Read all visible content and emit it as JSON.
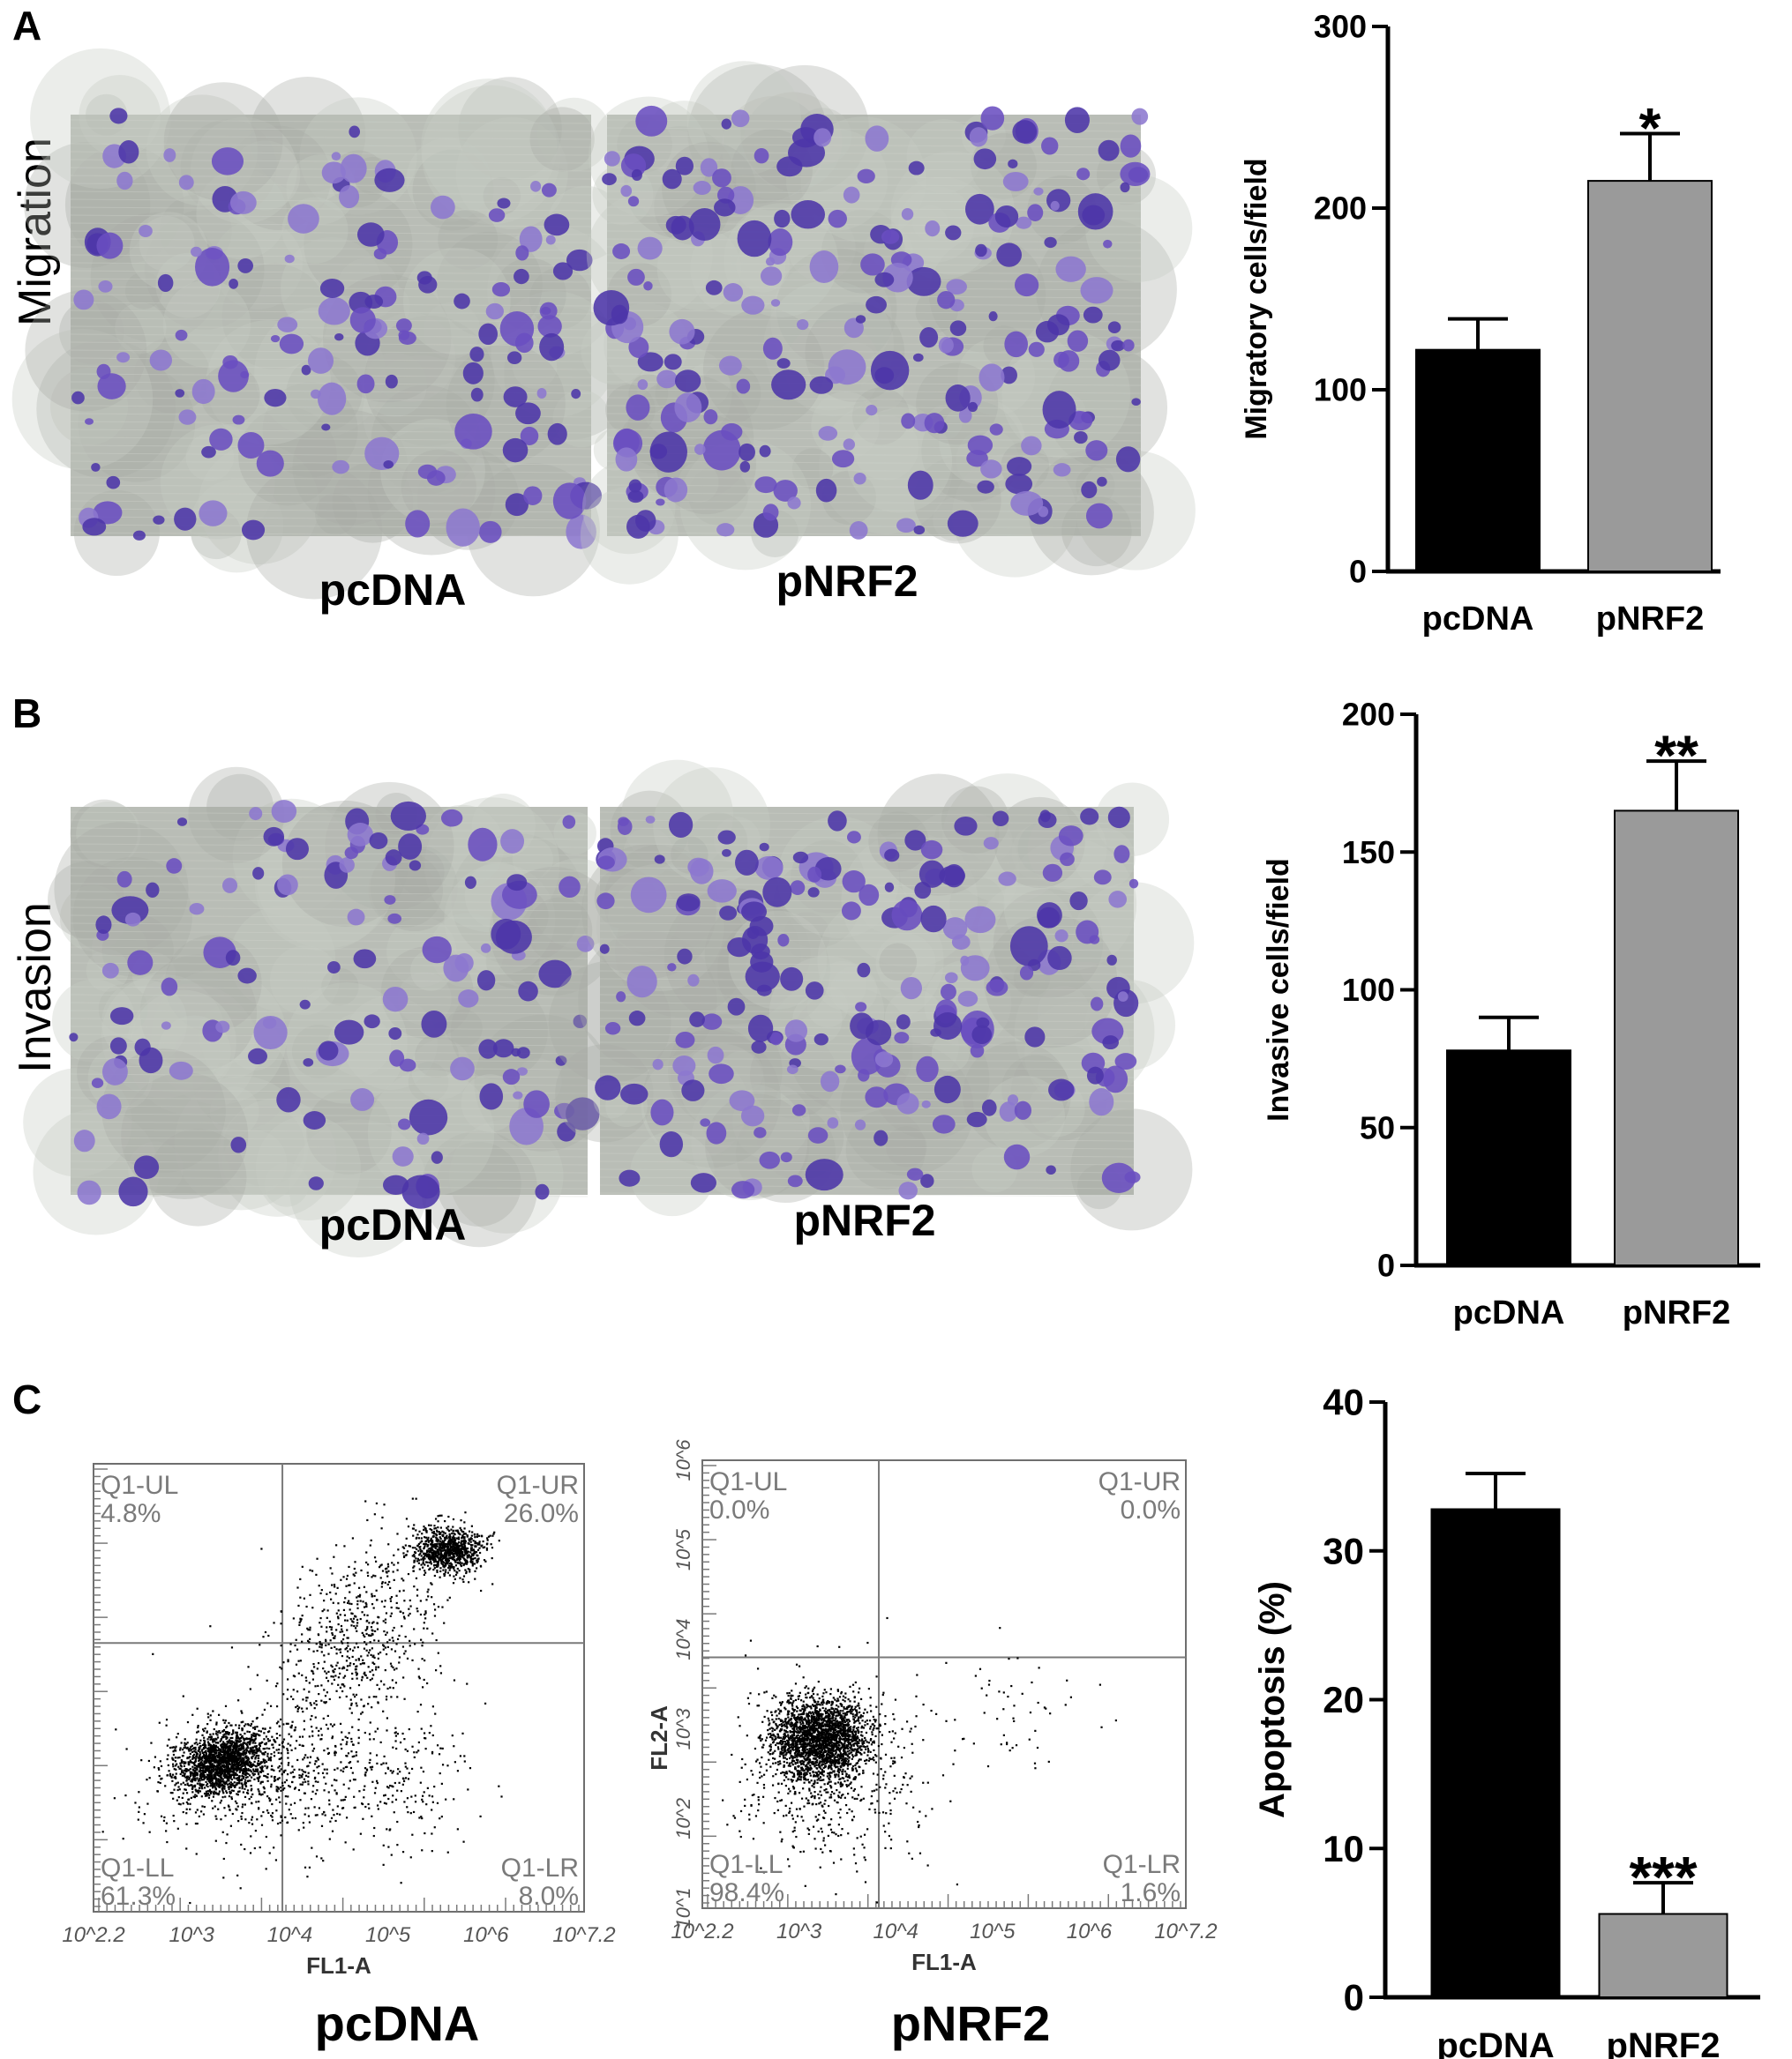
{
  "figure": {
    "panels": [
      {
        "letter": "A",
        "row_label": "Migration",
        "images": [
          {
            "caption": "pcDNA",
            "density": 1.0
          },
          {
            "caption": "pNRF2",
            "density": 1.6
          }
        ]
      },
      {
        "letter": "B",
        "row_label": "Invasion",
        "images": [
          {
            "caption": "pcDNA",
            "density": 0.9
          },
          {
            "caption": "pNRF2",
            "density": 1.5
          }
        ]
      },
      {
        "letter": "C",
        "flow_plots": [
          {
            "caption": "pcDNA",
            "xlabel": "FL1-A",
            "ylabel": "",
            "quadrants": {
              "ul_name": "Q1-UL",
              "ul_value": "4.8%",
              "ur_name": "Q1-UR",
              "ur_value": "26.0%",
              "ll_name": "Q1-LL",
              "ll_value": "61.3%",
              "lr_name": "Q1-LR",
              "lr_value": "8.0%"
            },
            "x_ticks": [
              "10^2.2",
              "10^3",
              "10^4",
              "10^5",
              "10^6",
              "10^7.2"
            ]
          },
          {
            "caption": "pNRF2",
            "xlabel": "FL1-A",
            "ylabel": "FL2-A",
            "quadrants": {
              "ul_name": "Q1-UL",
              "ul_value": "0.0%",
              "ur_name": "Q1-UR",
              "ur_value": "0.0%",
              "ll_name": "Q1-LL",
              "ll_value": "98.4%",
              "lr_name": "Q1-LR",
              "lr_value": "1.6%"
            },
            "x_ticks": [
              "10^2.2",
              "10^3",
              "10^4",
              "10^5",
              "10^6",
              "10^7.2"
            ],
            "y_ticks": [
              "10^1",
              "10^2",
              "10^3",
              "10^4",
              "10^5",
              "10^6"
            ]
          }
        ]
      }
    ]
  },
  "chart_data": [
    {
      "type": "bar",
      "categories": [
        "pcDNA",
        "pNRF2"
      ],
      "values": [
        122,
        215
      ],
      "errors": [
        17,
        26
      ],
      "ylabel": "Migratory cells/field",
      "ylim": [
        0,
        300
      ],
      "yticks": [
        0,
        100,
        200,
        300
      ],
      "significance": [
        "",
        "*"
      ],
      "colors": [
        "#000000",
        "#9a9a9a"
      ]
    },
    {
      "type": "bar",
      "categories": [
        "pcDNA",
        "pNRF2"
      ],
      "values": [
        78,
        165
      ],
      "errors": [
        12,
        18
      ],
      "ylabel": "Invasive cells/field",
      "ylim": [
        0,
        200
      ],
      "yticks": [
        0,
        50,
        100,
        150,
        200
      ],
      "significance": [
        "",
        "**"
      ],
      "colors": [
        "#000000",
        "#9a9a9a"
      ]
    },
    {
      "type": "bar",
      "categories": [
        "pcDNA",
        "pNRF2"
      ],
      "values": [
        32.8,
        5.6
      ],
      "errors": [
        2.4,
        2.1
      ],
      "ylabel": "Apoptosis (%)",
      "ylim": [
        0,
        40
      ],
      "yticks": [
        0,
        10,
        20,
        30,
        40
      ],
      "significance": [
        "",
        "***"
      ],
      "colors": [
        "#000000",
        "#9a9a9a"
      ]
    }
  ]
}
